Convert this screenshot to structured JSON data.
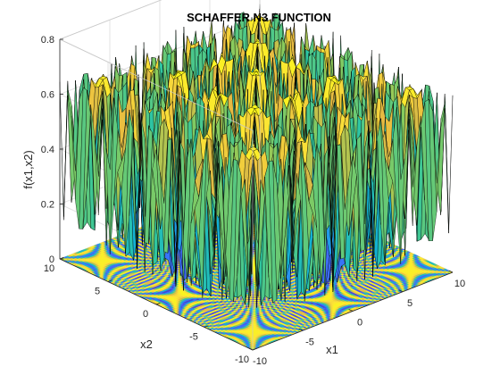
{
  "chart_data": {
    "type": "surface",
    "title": "SCHAFFER N3 FUNCTION",
    "xlabel": "x1",
    "ylabel": "x2",
    "zlabel": "f(x1,x2)",
    "function": "f(x1,x2) = 0.5 + (sin^2(cos(|x1^2 - x2^2|)) - 0.5) / (1 + 0.001*(x1^2 + x2^2))^2",
    "xlim": [
      -10,
      10
    ],
    "ylim": [
      -10,
      10
    ],
    "zlim": [
      0,
      0.8
    ],
    "x_ticks": [
      -10,
      -5,
      0,
      5,
      10
    ],
    "y_ticks": [
      -10,
      -5,
      0,
      5,
      10
    ],
    "z_ticks": [
      0,
      0.2,
      0.4,
      0.6,
      0.8
    ],
    "x_tick_labels": [
      "-10",
      "-5",
      "0",
      "5",
      "10"
    ],
    "y_tick_labels": [
      "-10",
      "-5",
      "0",
      "5",
      "10"
    ],
    "z_tick_labels": [
      "0",
      "0.2",
      "0.4",
      "0.6",
      "0.8"
    ],
    "grid_steps": 50,
    "colormap": [
      "#3e26a8",
      "#4a58f4",
      "#2e87f7",
      "#12b1d6",
      "#2fc6a0",
      "#8bcb5b",
      "#e7ba42",
      "#fce336",
      "#f9fb15"
    ],
    "floor_contour": true,
    "grid": true,
    "box": "open"
  }
}
